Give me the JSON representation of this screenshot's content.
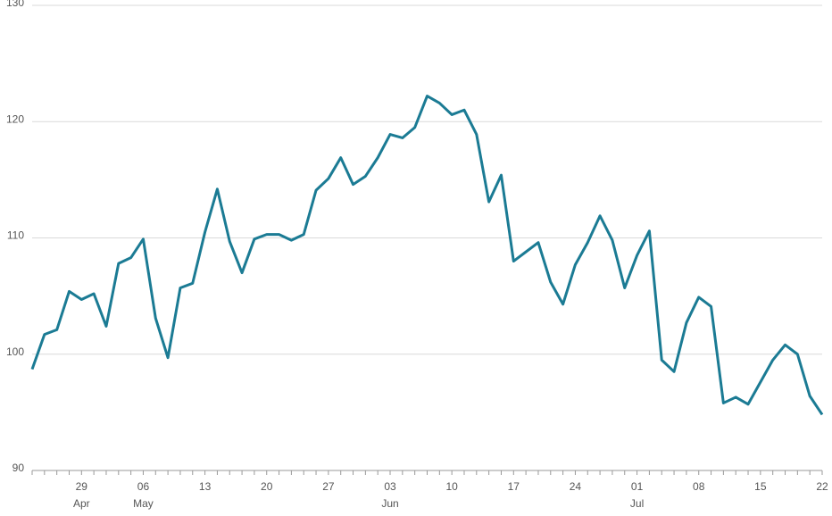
{
  "chart_data": {
    "type": "line",
    "categories": [
      null,
      null,
      null,
      null,
      "29",
      null,
      null,
      null,
      null,
      "06",
      null,
      null,
      null,
      null,
      "13",
      null,
      null,
      null,
      null,
      "20",
      null,
      null,
      null,
      null,
      "27",
      null,
      null,
      null,
      null,
      "03",
      null,
      null,
      null,
      null,
      "10",
      null,
      null,
      null,
      null,
      "17",
      null,
      null,
      null,
      null,
      "24",
      null,
      null,
      null,
      null,
      "01",
      null,
      null,
      null,
      null,
      "08",
      null,
      null,
      null,
      null,
      "15",
      null,
      null,
      null,
      null,
      "22"
    ],
    "category_months": [
      null,
      null,
      null,
      null,
      "Apr",
      null,
      null,
      null,
      null,
      "May",
      null,
      null,
      null,
      null,
      null,
      null,
      null,
      null,
      null,
      null,
      null,
      null,
      null,
      null,
      null,
      null,
      null,
      null,
      null,
      "Jun",
      null,
      null,
      null,
      null,
      null,
      null,
      null,
      null,
      null,
      null,
      null,
      null,
      null,
      null,
      null,
      null,
      null,
      null,
      null,
      "Jul",
      null,
      null,
      null,
      null,
      null,
      null,
      null,
      null,
      null,
      null,
      null,
      null,
      null,
      null,
      null
    ],
    "series": [
      {
        "color": "#1b7b94",
        "values": [
          98.7,
          101.7,
          102.1,
          105.4,
          104.7,
          105.2,
          102.4,
          107.8,
          108.3,
          109.9,
          103.1,
          99.7,
          105.7,
          106.1,
          110.5,
          114.2,
          109.7,
          107.0,
          109.9,
          110.3,
          110.3,
          109.8,
          110.3,
          114.1,
          115.1,
          116.9,
          114.6,
          115.3,
          116.9,
          118.9,
          118.6,
          119.5,
          122.2,
          121.6,
          120.6,
          121.0,
          118.9,
          113.1,
          115.4,
          108.0,
          108.8,
          109.6,
          106.2,
          104.3,
          107.7,
          109.6,
          111.9,
          109.8,
          105.7,
          108.5,
          110.6,
          99.5,
          98.5,
          102.7,
          104.9,
          104.1,
          95.8,
          96.3,
          95.7,
          97.6,
          99.5,
          100.8,
          100.0,
          96.4,
          94.8
        ]
      }
    ],
    "ylim": [
      90,
      130
    ],
    "yticks": [
      90,
      100,
      110,
      120,
      130
    ],
    "grid": true
  }
}
